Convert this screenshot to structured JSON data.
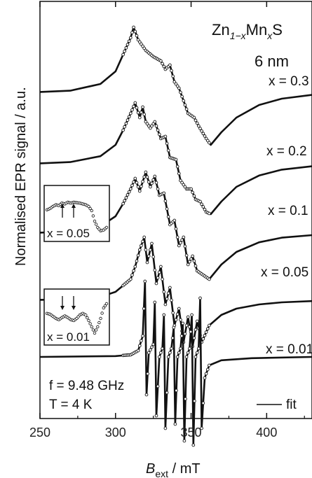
{
  "chart_data": {
    "type": "line",
    "title_formula": {
      "base": "Zn",
      "sub1": "1−x",
      "mid": "Mn",
      "sub2": "x",
      "end": "S"
    },
    "size_label": "6 nm",
    "ylabel": "Normalised EPR signal / a.u.",
    "xlabel": {
      "main": "B",
      "sub": "ext",
      "unit": " / mT"
    },
    "xlim": [
      250,
      430
    ],
    "xticks": [
      250,
      300,
      350,
      400
    ],
    "xtick_labels": [
      "250",
      "300",
      "350",
      "400"
    ],
    "frequency_label": "f = 9.48 GHz",
    "temperature_label": "T = 4 K",
    "legend": {
      "marker": "——",
      "label": "fit",
      "placement": "bottom-right"
    },
    "series": [
      {
        "name": "x = 0.3",
        "offset": 6.3,
        "points": [
          [
            250,
            0.01
          ],
          [
            270,
            0.04
          ],
          [
            290,
            0.2
          ],
          [
            300,
            0.5
          ],
          [
            305,
            0.9
          ],
          [
            310,
            1.3
          ],
          [
            312,
            1.55
          ],
          [
            315,
            1.25
          ],
          [
            320,
            1.0
          ],
          [
            325,
            0.85
          ],
          [
            330,
            0.75
          ],
          [
            333,
            0.55
          ],
          [
            336,
            0.65
          ],
          [
            339,
            0.25
          ],
          [
            342,
            0.1
          ],
          [
            345,
            -0.2
          ],
          [
            348,
            -0.5
          ],
          [
            352,
            -0.6
          ],
          [
            355,
            -0.8
          ],
          [
            360,
            -1.1
          ],
          [
            363,
            -1.25
          ],
          [
            370,
            -0.95
          ],
          [
            380,
            -0.6
          ],
          [
            395,
            -0.3
          ],
          [
            410,
            -0.15
          ],
          [
            430,
            -0.06
          ]
        ]
      },
      {
        "name": "x = 0.2",
        "offset": 4.6,
        "points": [
          [
            250,
            0.01
          ],
          [
            270,
            0.04
          ],
          [
            290,
            0.18
          ],
          [
            300,
            0.45
          ],
          [
            305,
            0.8
          ],
          [
            310,
            1.2
          ],
          [
            313,
            1.45
          ],
          [
            316,
            1.1
          ],
          [
            318,
            1.35
          ],
          [
            320,
            1.0
          ],
          [
            323,
            0.85
          ],
          [
            326,
            1.0
          ],
          [
            330,
            0.6
          ],
          [
            333,
            0.65
          ],
          [
            336,
            0.15
          ],
          [
            340,
            0.1
          ],
          [
            343,
            -0.4
          ],
          [
            347,
            -0.6
          ],
          [
            350,
            -0.6
          ],
          [
            353,
            -0.85
          ],
          [
            356,
            -0.9
          ],
          [
            360,
            -1.15
          ],
          [
            363,
            -1.2
          ],
          [
            370,
            -0.9
          ],
          [
            380,
            -0.55
          ],
          [
            395,
            -0.28
          ],
          [
            410,
            -0.14
          ],
          [
            430,
            -0.06
          ]
        ]
      },
      {
        "name": "x = 0.1",
        "offset": 2.95,
        "points": [
          [
            250,
            0.01
          ],
          [
            270,
            0.04
          ],
          [
            290,
            0.16
          ],
          [
            300,
            0.4
          ],
          [
            305,
            0.7
          ],
          [
            310,
            1.05
          ],
          [
            313,
            1.3
          ],
          [
            316,
            1.0
          ],
          [
            320,
            1.45
          ],
          [
            323,
            1.1
          ],
          [
            326,
            1.35
          ],
          [
            329,
            0.9
          ],
          [
            332,
            0.95
          ],
          [
            336,
            0.2
          ],
          [
            339,
            0.3
          ],
          [
            342,
            -0.3
          ],
          [
            345,
            -0.1
          ],
          [
            348,
            -0.75
          ],
          [
            351,
            -0.55
          ],
          [
            354,
            -0.9
          ],
          [
            358,
            -1.0
          ],
          [
            362,
            -1.1
          ],
          [
            370,
            -0.75
          ],
          [
            380,
            -0.45
          ],
          [
            395,
            -0.22
          ],
          [
            410,
            -0.11
          ],
          [
            430,
            -0.05
          ]
        ]
      },
      {
        "name": "x = 0.05",
        "offset": 1.35,
        "points": [
          [
            250,
            0.01
          ],
          [
            270,
            0.02
          ],
          [
            290,
            0.08
          ],
          [
            300,
            0.2
          ],
          [
            305,
            0.35
          ],
          [
            310,
            0.5
          ],
          [
            313,
            0.8
          ],
          [
            316,
            1.2
          ],
          [
            319,
            1.5
          ],
          [
            321,
            0.9
          ],
          [
            324,
            1.35
          ],
          [
            327,
            0.4
          ],
          [
            330,
            0.8
          ],
          [
            333,
            -0.1
          ],
          [
            336,
            0.3
          ],
          [
            339,
            -0.6
          ],
          [
            342,
            -0.2
          ],
          [
            345,
            -1.0
          ],
          [
            348,
            -0.4
          ],
          [
            351,
            -1.1
          ],
          [
            354,
            -0.5
          ],
          [
            357,
            -1.0
          ],
          [
            362,
            -0.6
          ],
          [
            370,
            -0.35
          ],
          [
            380,
            -0.2
          ],
          [
            395,
            -0.1
          ],
          [
            410,
            -0.05
          ],
          [
            430,
            -0.02
          ]
        ]
      },
      {
        "name": "x = 0.01",
        "offset": 0.0,
        "points": [
          [
            250,
            0.0
          ],
          [
            300,
            0.02
          ],
          [
            310,
            0.05
          ],
          [
            315,
            0.15
          ],
          [
            318,
            0.5
          ],
          [
            319.5,
            1.8
          ],
          [
            320.5,
            -0.9
          ],
          [
            322,
            0.1
          ],
          [
            325,
            0.3
          ],
          [
            326,
            1.3
          ],
          [
            327,
            -1.4
          ],
          [
            329,
            0.0
          ],
          [
            331,
            0.2
          ],
          [
            332,
            1.0
          ],
          [
            333,
            -1.7
          ],
          [
            335,
            0.0
          ],
          [
            337,
            0.2
          ],
          [
            338.5,
            0.7
          ],
          [
            339.5,
            -1.6
          ],
          [
            341,
            0.0
          ],
          [
            343,
            0.2
          ],
          [
            344.5,
            0.8
          ],
          [
            345.5,
            -2.0
          ],
          [
            347,
            0.0
          ],
          [
            349,
            0.2
          ],
          [
            350.5,
            1.0
          ],
          [
            351.5,
            -2.1
          ],
          [
            353,
            0.0
          ],
          [
            355,
            0.2
          ],
          [
            356,
            1.4
          ],
          [
            357,
            -1.7
          ],
          [
            359,
            -0.5
          ],
          [
            362,
            -0.2
          ],
          [
            370,
            -0.08
          ],
          [
            390,
            -0.03
          ],
          [
            430,
            0.0
          ]
        ]
      }
    ],
    "insets": [
      {
        "label": "x = 0.05",
        "arrows": "up",
        "points": [
          [
            0,
            0.62
          ],
          [
            0.05,
            0.65
          ],
          [
            0.1,
            0.7
          ],
          [
            0.15,
            0.74
          ],
          [
            0.2,
            0.72
          ],
          [
            0.25,
            0.78
          ],
          [
            0.3,
            0.76
          ],
          [
            0.35,
            0.8
          ],
          [
            0.4,
            0.78
          ],
          [
            0.45,
            0.8
          ],
          [
            0.5,
            0.79
          ],
          [
            0.55,
            0.78
          ],
          [
            0.6,
            0.76
          ],
          [
            0.65,
            0.74
          ],
          [
            0.7,
            0.7
          ],
          [
            0.75,
            0.6
          ],
          [
            0.8,
            0.35
          ],
          [
            0.85,
            0.2
          ],
          [
            0.9,
            0.12
          ],
          [
            0.95,
            0.14
          ],
          [
            1.0,
            0.2
          ]
        ]
      },
      {
        "label": "x = 0.01",
        "arrows": "down",
        "points": [
          [
            0,
            0.62
          ],
          [
            0.05,
            0.6
          ],
          [
            0.1,
            0.55
          ],
          [
            0.15,
            0.5
          ],
          [
            0.2,
            0.47
          ],
          [
            0.25,
            0.52
          ],
          [
            0.3,
            0.56
          ],
          [
            0.35,
            0.52
          ],
          [
            0.4,
            0.47
          ],
          [
            0.45,
            0.45
          ],
          [
            0.5,
            0.5
          ],
          [
            0.55,
            0.58
          ],
          [
            0.6,
            0.62
          ],
          [
            0.65,
            0.58
          ],
          [
            0.7,
            0.45
          ],
          [
            0.75,
            0.3
          ],
          [
            0.8,
            0.15
          ],
          [
            0.85,
            0.3
          ],
          [
            0.9,
            0.5
          ],
          [
            0.95,
            0.75
          ],
          [
            1.0,
            0.85
          ]
        ]
      }
    ]
  }
}
